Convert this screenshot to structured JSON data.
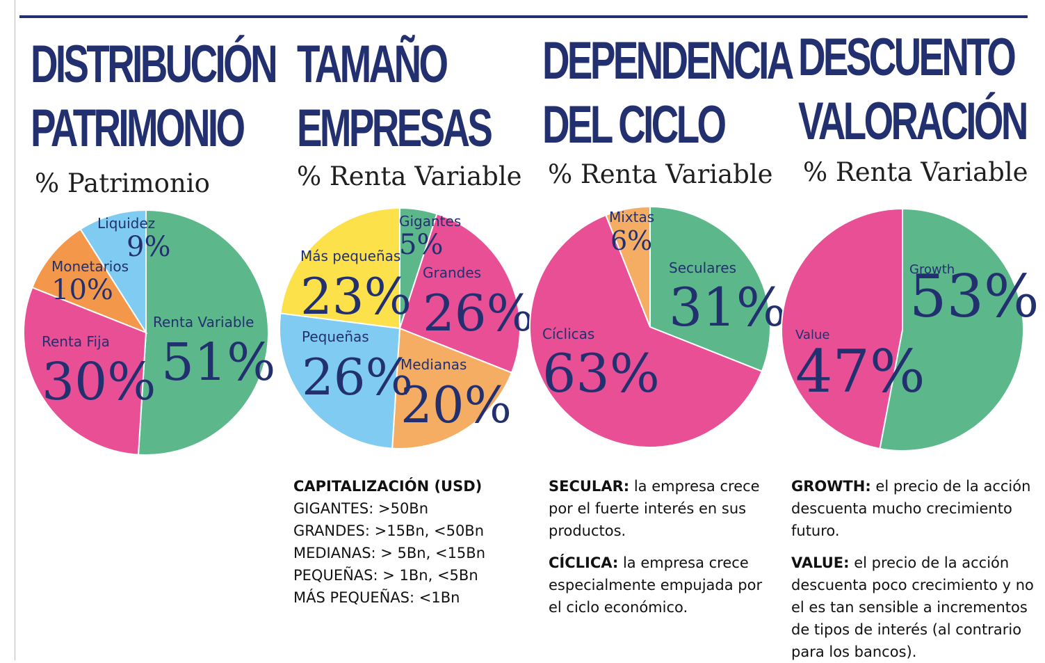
{
  "colors": {
    "navy": "#233070",
    "green": "#5cb88a",
    "pink": "#e84f95",
    "orange": "#f3984a",
    "lightblue": "#7fcbf2",
    "yellow": "#fce14a",
    "lightorange": "#f4ad63"
  },
  "panels": [
    {
      "title_line1": "DISTRIBUCIÓN",
      "title_line2": "PATRIMONIO",
      "subtitle": "% Patrimonio"
    },
    {
      "title_line1": "TAMAÑO",
      "title_line2": "EMPRESAS",
      "subtitle": "% Renta Variable"
    },
    {
      "title_line1": "DEPENDENCIA",
      "title_line2": "DEL CICLO",
      "subtitle": "% Renta Variable"
    },
    {
      "title_line1": "DESCUENTO",
      "title_line2": "VALORACIÓN",
      "subtitle": "% Renta Variable"
    }
  ],
  "chart_data": [
    {
      "type": "pie",
      "title": "DISTRIBUCIÓN PATRIMONIO",
      "subtitle": "% Patrimonio",
      "categories": [
        "Renta Variable",
        "Renta Fija",
        "Monetarios",
        "Liquidez"
      ],
      "values": [
        51,
        30,
        10,
        9
      ],
      "labels": [
        "51%",
        "30%",
        "10%",
        "9%"
      ],
      "colors": [
        "#5cb88a",
        "#e84f95",
        "#f3984a",
        "#7fcbf2"
      ]
    },
    {
      "type": "pie",
      "title": "TAMAÑO EMPRESAS",
      "subtitle": "% Renta Variable",
      "categories": [
        "Gigantes",
        "Grandes",
        "Medianas",
        "Pequeñas",
        "Más pequeñas"
      ],
      "values": [
        5,
        26,
        20,
        26,
        23
      ],
      "labels": [
        "5%",
        "26%",
        "20%",
        "26%",
        "23%"
      ],
      "colors": [
        "#5cb88a",
        "#e84f95",
        "#f4ad63",
        "#7fcbf2",
        "#fce14a"
      ]
    },
    {
      "type": "pie",
      "title": "DEPENDENCIA DEL CICLO",
      "subtitle": "% Renta Variable",
      "categories": [
        "Seculares",
        "Cíclicas",
        "Mixtas"
      ],
      "values": [
        31,
        63,
        6
      ],
      "labels": [
        "31%",
        "63%",
        "6%"
      ],
      "colors": [
        "#5cb88a",
        "#e84f95",
        "#f4ad63"
      ]
    },
    {
      "type": "pie",
      "title": "DESCUENTO VALORACIÓN",
      "subtitle": "% Renta Variable",
      "categories": [
        "Growth",
        "Value"
      ],
      "values": [
        53,
        47
      ],
      "labels": [
        "53%",
        "47%"
      ],
      "colors": [
        "#5cb88a",
        "#e84f95"
      ]
    }
  ],
  "notes": {
    "size": {
      "heading": "CAPITALIZACIÓN (USD)",
      "lines": [
        "GIGANTES: >50Bn",
        "GRANDES:  >15Bn, <50Bn",
        "MEDIANAS: > 5Bn, <15Bn",
        "PEQUEÑAS: > 1Bn, <5Bn",
        "MÁS PEQUEÑAS: <1Bn"
      ]
    },
    "cycle": {
      "secular_term": "SECULAR:",
      "secular_text": "  la empresa crece por el fuerte interés en sus productos.",
      "ciclica_term": "CÍCLICA:",
      "ciclica_text": "  la empresa crece especialmente empujada por el ciclo económico."
    },
    "valuation": {
      "growth_term": "GROWTH:",
      "growth_text": " el precio de la acción descuenta mucho crecimiento futuro.",
      "value_term": "VALUE:",
      "value_text": " el precio de la acción descuenta poco crecimiento y no el es tan sensible a incrementos de tipos de interés (al contrario para los bancos)."
    }
  }
}
